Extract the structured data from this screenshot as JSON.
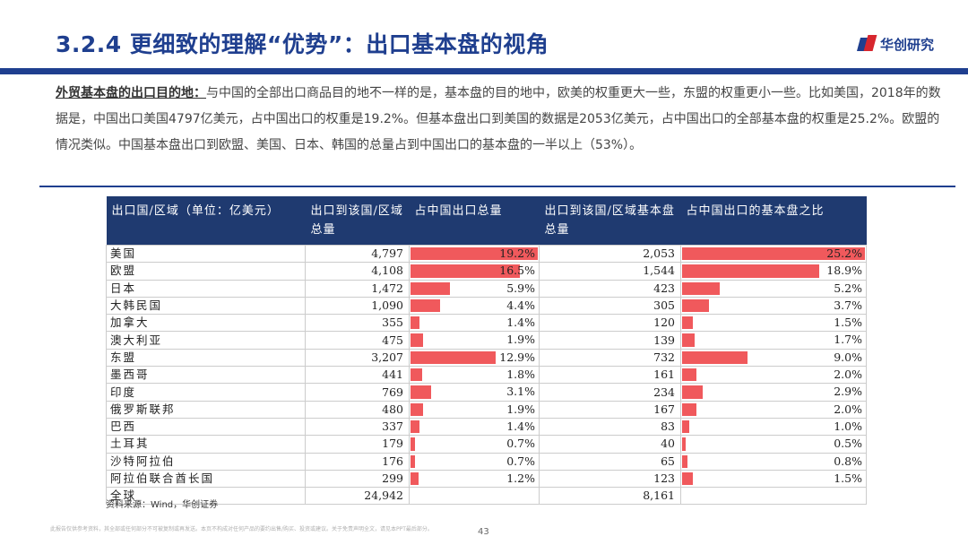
{
  "title": "3.2.4 更细致的理解“优势”：出口基本盘的视角",
  "logo_text": "华创研究",
  "paragraph": {
    "lead": "外贸基本盘的出口目的地：",
    "body": "与中国的全部出口商品目的地不一样的是，基本盘的目的地中，欧美的权重更大一些，东盟的权重更小一些。比如美国，2018年的数据是，中国出口美国4797亿美元，占中国出口的权重是19.2%。但基本盘出口到美国的数据是2053亿美元，占中国出口的全部基本盘的权重是25.2%。欧盟的情况类似。中国基本盘出口到欧盟、美国、日本、韩国的总量占到中国出口的基本盘的一半以上（53%）。"
  },
  "table": {
    "headers": [
      "出口国/区域（单位：亿美元）",
      "出口到该国/区域总量",
      "占中国出口总量",
      "出口到该国/区域基本盘总量",
      "占中国出口的基本盘之比"
    ],
    "rows": [
      {
        "name": "美国",
        "total": "4,797",
        "share": "19.2%",
        "share_value": 19.2,
        "base": "2,053",
        "base_share": "25.2%",
        "base_share_value": 25.2
      },
      {
        "name": "欧盟",
        "total": "4,108",
        "share": "16.5%",
        "share_value": 16.5,
        "base": "1,544",
        "base_share": "18.9%",
        "base_share_value": 18.9
      },
      {
        "name": "日本",
        "total": "1,472",
        "share": "5.9%",
        "share_value": 5.9,
        "base": "423",
        "base_share": "5.2%",
        "base_share_value": 5.2
      },
      {
        "name": "大韩民国",
        "total": "1,090",
        "share": "4.4%",
        "share_value": 4.4,
        "base": "305",
        "base_share": "3.7%",
        "base_share_value": 3.7
      },
      {
        "name": "加拿大",
        "total": "355",
        "share": "1.4%",
        "share_value": 1.4,
        "base": "120",
        "base_share": "1.5%",
        "base_share_value": 1.5
      },
      {
        "name": "澳大利亚",
        "total": "475",
        "share": "1.9%",
        "share_value": 1.9,
        "base": "139",
        "base_share": "1.7%",
        "base_share_value": 1.7
      },
      {
        "name": "东盟",
        "total": "3,207",
        "share": "12.9%",
        "share_value": 12.9,
        "base": "732",
        "base_share": "9.0%",
        "base_share_value": 9.0
      },
      {
        "name": "墨西哥",
        "total": "441",
        "share": "1.8%",
        "share_value": 1.8,
        "base": "161",
        "base_share": "2.0%",
        "base_share_value": 2.0
      },
      {
        "name": "印度",
        "total": "769",
        "share": "3.1%",
        "share_value": 3.1,
        "base": "234",
        "base_share": "2.9%",
        "base_share_value": 2.9
      },
      {
        "name": "俄罗斯联邦",
        "total": "480",
        "share": "1.9%",
        "share_value": 1.9,
        "base": "167",
        "base_share": "2.0%",
        "base_share_value": 2.0
      },
      {
        "name": "巴西",
        "total": "337",
        "share": "1.4%",
        "share_value": 1.4,
        "base": "83",
        "base_share": "1.0%",
        "base_share_value": 1.0
      },
      {
        "name": "土耳其",
        "total": "179",
        "share": "0.7%",
        "share_value": 0.7,
        "base": "40",
        "base_share": "0.5%",
        "base_share_value": 0.5
      },
      {
        "name": "沙特阿拉伯",
        "total": "176",
        "share": "0.7%",
        "share_value": 0.7,
        "base": "65",
        "base_share": "0.8%",
        "base_share_value": 0.8
      },
      {
        "name": "阿拉伯联合酋长国",
        "total": "299",
        "share": "1.2%",
        "share_value": 1.2,
        "base": "123",
        "base_share": "1.5%",
        "base_share_value": 1.5
      },
      {
        "name": "全球",
        "total": "24,942",
        "share": "",
        "share_value": 0,
        "base": "8,161",
        "base_share": "",
        "base_share_value": 0
      }
    ],
    "bar_max": 19.2,
    "base_bar_max": 25.2
  },
  "source": "资料来源：Wind，华创证券",
  "footer": "此报告仅供参考资料，其全部或任何部分不可被复制或再发送。本页不构成对任何产品的要约出售/购买、投资或建议。关于免责声明全文，请见本PPT最后部分。",
  "page_number": "43",
  "colors": {
    "brand_blue": "#1f3f8f",
    "header_bg": "#1f3a70",
    "bar_red": "#f0595c",
    "logo_red": "#d7262e"
  }
}
